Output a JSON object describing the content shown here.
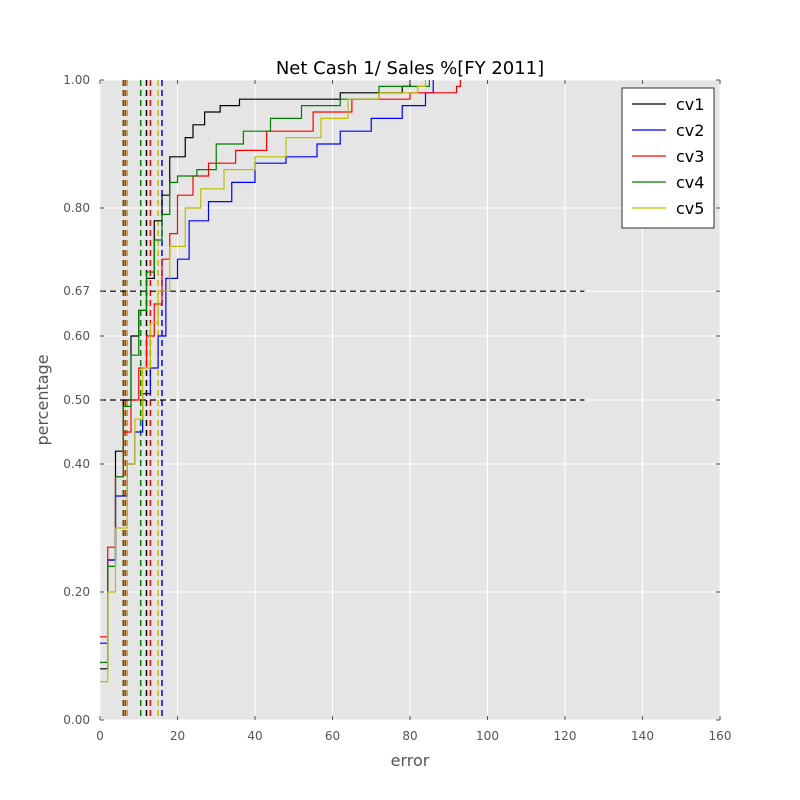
{
  "chart_data": {
    "type": "line",
    "title": "Net Cash 1/ Sales %[FY 2011]",
    "xlabel": "error",
    "ylabel": "percentage",
    "xlim": [
      0,
      160
    ],
    "ylim": [
      0,
      1
    ],
    "x_ticks": [
      0,
      20,
      40,
      60,
      80,
      100,
      120,
      140,
      160
    ],
    "y_ticks": [
      0.0,
      0.2,
      0.4,
      0.5,
      0.6,
      0.67,
      0.8,
      1.0
    ],
    "grid": true,
    "legend_position": "top-right",
    "reference_lines": {
      "horizontal": [
        {
          "y": 0.5,
          "x_end": 125
        },
        {
          "y": 0.67,
          "x_end": 125
        }
      ],
      "vertical": [
        {
          "x": 6.0,
          "series": "cv1"
        },
        {
          "x": 12.0,
          "series": "cv1"
        },
        {
          "x": 7.0,
          "series": "cv2"
        },
        {
          "x": 16.0,
          "series": "cv2"
        },
        {
          "x": 6.5,
          "series": "cv3"
        },
        {
          "x": 13.0,
          "series": "cv3"
        },
        {
          "x": 6.0,
          "series": "cv4"
        },
        {
          "x": 10.5,
          "series": "cv4"
        },
        {
          "x": 7.0,
          "series": "cv5"
        },
        {
          "x": 15.0,
          "series": "cv5"
        }
      ]
    },
    "series": [
      {
        "name": "cv1",
        "color": "#000000",
        "points": [
          [
            0,
            0.08
          ],
          [
            2,
            0.25
          ],
          [
            4,
            0.42
          ],
          [
            6,
            0.5
          ],
          [
            8,
            0.6
          ],
          [
            10,
            0.64
          ],
          [
            12,
            0.69
          ],
          [
            14,
            0.78
          ],
          [
            16,
            0.82
          ],
          [
            18,
            0.88
          ],
          [
            20,
            0.88
          ],
          [
            22,
            0.91
          ],
          [
            24,
            0.93
          ],
          [
            27,
            0.95
          ],
          [
            31,
            0.96
          ],
          [
            36,
            0.97
          ],
          [
            50,
            0.97
          ],
          [
            62,
            0.98
          ],
          [
            78,
            0.99
          ],
          [
            80,
            1.0
          ]
        ]
      },
      {
        "name": "cv2",
        "color": "#0000ff",
        "points": [
          [
            0,
            0.12
          ],
          [
            2,
            0.25
          ],
          [
            4,
            0.35
          ],
          [
            7,
            0.4
          ],
          [
            9,
            0.45
          ],
          [
            11,
            0.51
          ],
          [
            13,
            0.55
          ],
          [
            15,
            0.6
          ],
          [
            17,
            0.69
          ],
          [
            20,
            0.72
          ],
          [
            23,
            0.78
          ],
          [
            28,
            0.81
          ],
          [
            34,
            0.84
          ],
          [
            40,
            0.87
          ],
          [
            48,
            0.88
          ],
          [
            56,
            0.9
          ],
          [
            62,
            0.92
          ],
          [
            70,
            0.94
          ],
          [
            78,
            0.96
          ],
          [
            84,
            0.98
          ],
          [
            86,
            1.0
          ]
        ]
      },
      {
        "name": "cv3",
        "color": "#ff0000",
        "points": [
          [
            0,
            0.13
          ],
          [
            2,
            0.27
          ],
          [
            4,
            0.38
          ],
          [
            6,
            0.45
          ],
          [
            8,
            0.5
          ],
          [
            10,
            0.55
          ],
          [
            12,
            0.6
          ],
          [
            14,
            0.65
          ],
          [
            16,
            0.72
          ],
          [
            18,
            0.76
          ],
          [
            20,
            0.82
          ],
          [
            24,
            0.85
          ],
          [
            28,
            0.87
          ],
          [
            35,
            0.89
          ],
          [
            43,
            0.92
          ],
          [
            55,
            0.95
          ],
          [
            65,
            0.97
          ],
          [
            80,
            0.98
          ],
          [
            92,
            0.99
          ],
          [
            93,
            1.0
          ]
        ]
      },
      {
        "name": "cv4",
        "color": "#008000",
        "points": [
          [
            0,
            0.09
          ],
          [
            2,
            0.24
          ],
          [
            4,
            0.38
          ],
          [
            6,
            0.49
          ],
          [
            8,
            0.57
          ],
          [
            10,
            0.64
          ],
          [
            12,
            0.7
          ],
          [
            14,
            0.75
          ],
          [
            16,
            0.79
          ],
          [
            18,
            0.84
          ],
          [
            20,
            0.85
          ],
          [
            25,
            0.86
          ],
          [
            30,
            0.9
          ],
          [
            37,
            0.92
          ],
          [
            44,
            0.94
          ],
          [
            52,
            0.96
          ],
          [
            62,
            0.97
          ],
          [
            72,
            0.99
          ],
          [
            85,
            1.0
          ]
        ]
      },
      {
        "name": "cv5",
        "color": "#bfbf00",
        "points": [
          [
            0,
            0.06
          ],
          [
            2,
            0.2
          ],
          [
            4,
            0.3
          ],
          [
            7,
            0.4
          ],
          [
            9,
            0.47
          ],
          [
            11,
            0.55
          ],
          [
            13,
            0.62
          ],
          [
            15,
            0.67
          ],
          [
            18,
            0.74
          ],
          [
            22,
            0.8
          ],
          [
            26,
            0.83
          ],
          [
            32,
            0.86
          ],
          [
            40,
            0.88
          ],
          [
            48,
            0.91
          ],
          [
            57,
            0.94
          ],
          [
            64,
            0.97
          ],
          [
            72,
            0.98
          ],
          [
            82,
            0.99
          ],
          [
            84,
            1.0
          ]
        ]
      }
    ]
  }
}
